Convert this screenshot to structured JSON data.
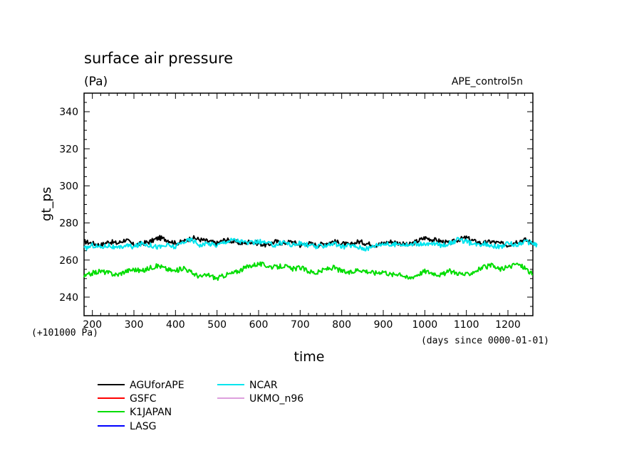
{
  "chart_data": {
    "type": "line",
    "title": "surface air pressure",
    "units": "(Pa)",
    "experiment": "APE_control5n",
    "ylabel": "gt_ps",
    "xlabel": "time",
    "x_unit": "(days since 0000-01-01)",
    "y_offset": "(+101000 Pa)",
    "xlim": [
      180,
      1260
    ],
    "ylim": [
      230,
      350
    ],
    "x_ticks": [
      "200",
      "300",
      "400",
      "500",
      "600",
      "700",
      "800",
      "900",
      "1000",
      "1100",
      "1200"
    ],
    "y_ticks": [
      "240",
      "260",
      "280",
      "300",
      "320",
      "340"
    ],
    "legend_position": "below plot",
    "series": [
      {
        "name": "AGUforAPE",
        "color": "#000000",
        "x": [
          180,
          200,
          220,
          240,
          260,
          280,
          300,
          320,
          340,
          360,
          380,
          400,
          420,
          440,
          460,
          480,
          500,
          520,
          540,
          560,
          580,
          600,
          620,
          640,
          660,
          680,
          700,
          720,
          740,
          760,
          780,
          800,
          820,
          840,
          860,
          880,
          900,
          920,
          940,
          960,
          980,
          1000,
          1020,
          1040,
          1060,
          1080,
          1100,
          1120,
          1140,
          1160,
          1180,
          1200,
          1220,
          1240,
          1260
        ],
        "y": [
          270,
          269,
          268,
          270,
          269,
          271,
          268,
          269,
          270,
          272,
          271,
          269,
          270,
          272,
          271,
          270,
          269,
          271,
          270,
          269,
          270,
          269,
          268,
          270,
          269,
          270,
          268,
          269,
          268,
          269,
          270,
          269,
          268,
          270,
          269,
          268,
          269,
          270,
          269,
          268,
          270,
          272,
          271,
          270,
          269,
          271,
          272,
          270,
          269,
          270,
          269,
          268,
          270,
          271,
          269
        ]
      },
      {
        "name": "GSFC",
        "color": "#ff0000",
        "x": [],
        "y": []
      },
      {
        "name": "K1JAPAN",
        "color": "#00dd00",
        "x": [
          180,
          200,
          220,
          240,
          260,
          280,
          300,
          320,
          340,
          360,
          380,
          400,
          420,
          440,
          460,
          480,
          500,
          520,
          540,
          560,
          580,
          600,
          620,
          640,
          660,
          680,
          700,
          720,
          740,
          760,
          780,
          800,
          820,
          840,
          860,
          880,
          900,
          920,
          940,
          960,
          980,
          1000,
          1020,
          1040,
          1060,
          1080,
          1100,
          1120,
          1140,
          1160,
          1180,
          1200,
          1220,
          1240,
          1260
        ],
        "y": [
          251,
          253,
          254,
          253,
          252,
          254,
          255,
          254,
          256,
          257,
          255,
          254,
          256,
          253,
          251,
          252,
          250,
          252,
          253,
          255,
          257,
          258,
          257,
          256,
          257,
          255,
          256,
          254,
          253,
          255,
          256,
          254,
          253,
          255,
          254,
          253,
          254,
          252,
          253,
          250,
          252,
          254,
          253,
          252,
          254,
          253,
          252,
          254,
          256,
          257,
          255,
          256,
          258,
          256,
          252
        ]
      },
      {
        "name": "LASG",
        "color": "#0000ff",
        "x": [],
        "y": []
      },
      {
        "name": "NCAR",
        "color": "#00e5ee",
        "x": [
          180,
          200,
          220,
          240,
          260,
          280,
          300,
          320,
          340,
          360,
          380,
          400,
          420,
          440,
          460,
          480,
          500,
          520,
          540,
          560,
          580,
          600,
          620,
          640,
          660,
          680,
          700,
          720,
          740,
          760,
          780,
          800,
          820,
          840,
          860,
          880,
          900,
          920,
          940,
          960,
          980,
          1000,
          1020,
          1040,
          1060,
          1080,
          1100,
          1120,
          1140,
          1160,
          1180,
          1200,
          1220,
          1240,
          1260,
          1270
        ],
        "y": [
          266,
          268,
          267,
          268,
          266,
          268,
          267,
          269,
          268,
          267,
          268,
          267,
          270,
          271,
          268,
          269,
          268,
          270,
          271,
          270,
          269,
          270,
          269,
          268,
          270,
          268,
          269,
          268,
          267,
          268,
          269,
          267,
          268,
          267,
          266,
          268,
          269,
          268,
          269,
          268,
          269,
          268,
          269,
          268,
          269,
          271,
          270,
          268,
          269,
          268,
          267,
          269,
          268,
          270,
          269,
          268
        ]
      },
      {
        "name": "UKMO_n96",
        "color": "#dda0dd",
        "x": [],
        "y": []
      }
    ]
  }
}
